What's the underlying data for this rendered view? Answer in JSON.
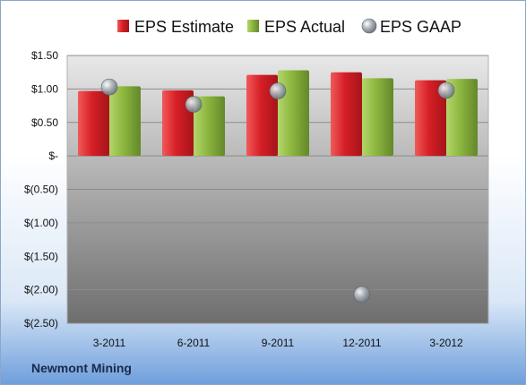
{
  "company": "Newmont Mining",
  "chart_data": {
    "type": "bar",
    "categories": [
      "3-2011",
      "6-2011",
      "9-2011",
      "12-2011",
      "3-2012"
    ],
    "series": [
      {
        "name": "EPS Estimate",
        "type": "bar",
        "color": "#d8232a",
        "values": [
          0.97,
          0.98,
          1.21,
          1.25,
          1.13
        ]
      },
      {
        "name": "EPS Actual",
        "type": "bar",
        "color": "#8db840",
        "values": [
          1.04,
          0.89,
          1.28,
          1.16,
          1.15
        ]
      },
      {
        "name": "EPS GAAP",
        "type": "marker",
        "color": "#9aa3ad",
        "values": [
          1.03,
          0.77,
          0.97,
          -2.07,
          0.98
        ]
      }
    ],
    "ylim": [
      -2.5,
      1.5
    ],
    "yticks": [
      1.5,
      1.0,
      0.5,
      0,
      -0.5,
      -1.0,
      -1.5,
      -2.0,
      -2.5
    ],
    "ytick_labels": [
      "$1.50",
      "$1.00",
      "$0.50",
      "$-",
      "$(0.50)",
      "$(1.00)",
      "$(1.50)",
      "$(2.00)",
      "$(2.50)"
    ],
    "grid": true,
    "legend_position": "top"
  }
}
